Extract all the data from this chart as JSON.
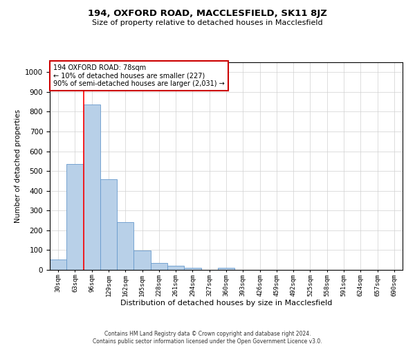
{
  "title": "194, OXFORD ROAD, MACCLESFIELD, SK11 8JZ",
  "subtitle": "Size of property relative to detached houses in Macclesfield",
  "xlabel": "Distribution of detached houses by size in Macclesfield",
  "ylabel": "Number of detached properties",
  "footer_line1": "Contains HM Land Registry data © Crown copyright and database right 2024.",
  "footer_line2": "Contains public sector information licensed under the Open Government Licence v3.0.",
  "bar_values": [
    52,
    535,
    835,
    457,
    243,
    98,
    35,
    22,
    12,
    0,
    12,
    0,
    0,
    0,
    0,
    0,
    0,
    0,
    0,
    0,
    0
  ],
  "bin_labels": [
    "30sqm",
    "63sqm",
    "96sqm",
    "129sqm",
    "162sqm",
    "195sqm",
    "228sqm",
    "261sqm",
    "294sqm",
    "327sqm",
    "360sqm",
    "393sqm",
    "426sqm",
    "459sqm",
    "492sqm",
    "525sqm",
    "558sqm",
    "591sqm",
    "624sqm",
    "657sqm",
    "690sqm"
  ],
  "bar_color": "#b8d0e8",
  "bar_edgecolor": "#6699cc",
  "red_line_x": 1.5,
  "annotation_text": "194 OXFORD ROAD: 78sqm\n← 10% of detached houses are smaller (227)\n90% of semi-detached houses are larger (2,031) →",
  "annotation_box_color": "#ffffff",
  "annotation_box_edgecolor": "#cc0000",
  "ylim": [
    0,
    1050
  ],
  "yticks": [
    0,
    100,
    200,
    300,
    400,
    500,
    600,
    700,
    800,
    900,
    1000
  ],
  "background_color": "#ffffff",
  "grid_color": "#d0d0d0"
}
